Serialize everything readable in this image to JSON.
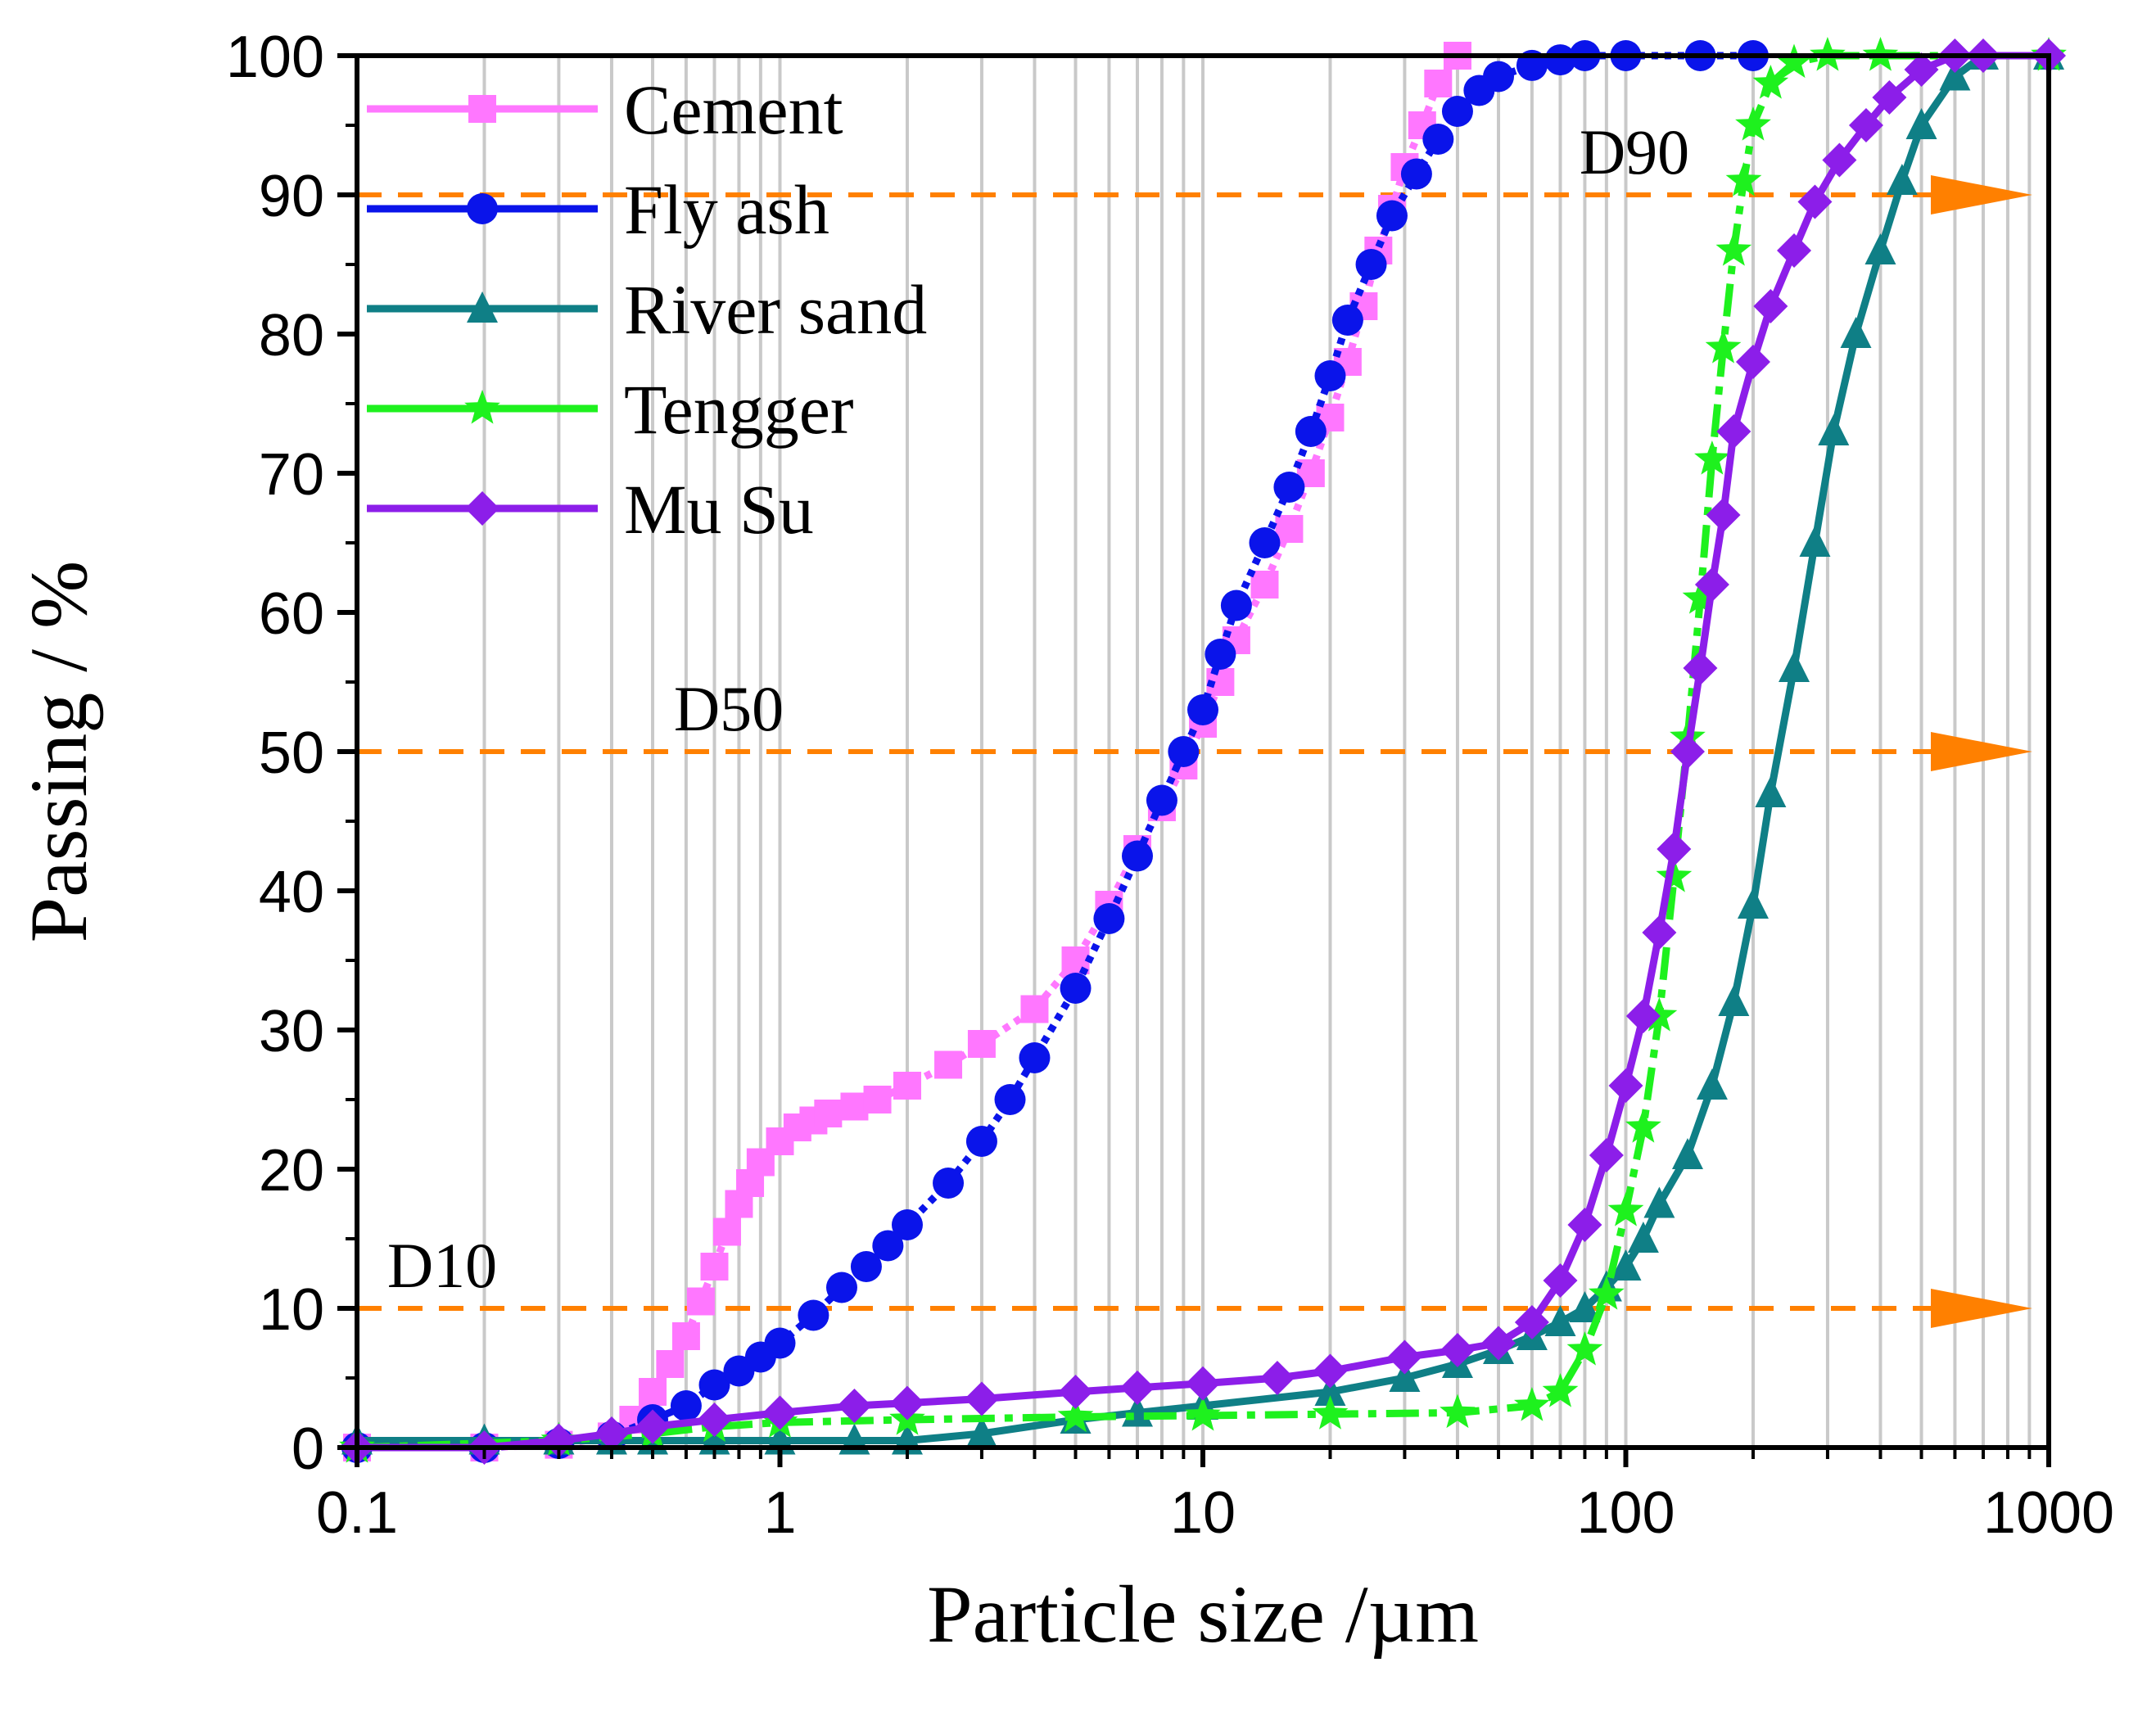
{
  "chart_data": {
    "type": "line",
    "title": "",
    "xlabel": "Particle size /µm",
    "ylabel": "Passing / %",
    "xscale": "log",
    "xlim": [
      0.1,
      1000
    ],
    "ylim": [
      0,
      100
    ],
    "x_ticks": [
      0.1,
      1,
      10,
      100,
      1000
    ],
    "x_tick_labels": [
      "0.1",
      "1",
      "10",
      "100",
      "1000"
    ],
    "y_ticks": [
      0,
      10,
      20,
      30,
      40,
      50,
      60,
      70,
      80,
      90,
      100
    ],
    "y_tick_labels": [
      "0",
      "10",
      "20",
      "30",
      "40",
      "50",
      "60",
      "70",
      "80",
      "90",
      "100"
    ],
    "grid": "vertical minor log gridlines",
    "legend_position": "top-left",
    "reference_lines": [
      {
        "label": "D10",
        "y": 10,
        "color": "#ff8000"
      },
      {
        "label": "D50",
        "y": 50,
        "color": "#ff8000"
      },
      {
        "label": "D90",
        "y": 90,
        "color": "#ff8000"
      }
    ],
    "series": [
      {
        "name": "Cement",
        "color": "#ff77ff",
        "marker": "square",
        "x": [
          0.1,
          0.2,
          0.3,
          0.4,
          0.45,
          0.5,
          0.55,
          0.6,
          0.65,
          0.7,
          0.75,
          0.8,
          0.85,
          0.9,
          1.0,
          1.1,
          1.2,
          1.3,
          1.5,
          1.7,
          2.0,
          2.5,
          3.0,
          4.0,
          5.0,
          6.0,
          7.0,
          8.0,
          9.0,
          10,
          11,
          12,
          14,
          16,
          18,
          20,
          22,
          24,
          26,
          28,
          30,
          33,
          36,
          40
        ],
        "y": [
          0,
          0,
          0.2,
          0.8,
          2,
          4,
          6,
          8,
          10.5,
          13,
          15.5,
          17.5,
          19,
          20.5,
          22,
          23,
          23.5,
          24,
          24.5,
          25,
          26,
          27.5,
          29,
          31.5,
          35,
          39,
          43,
          46,
          49,
          52,
          55,
          58,
          62,
          66,
          70,
          74,
          78,
          82,
          86,
          89,
          92,
          95,
          98,
          100
        ]
      },
      {
        "name": "Fly ash",
        "color": "#0a14ea",
        "marker": "circle",
        "x": [
          0.1,
          0.2,
          0.3,
          0.4,
          0.5,
          0.6,
          0.7,
          0.8,
          0.9,
          1.0,
          1.2,
          1.4,
          1.6,
          1.8,
          2.0,
          2.5,
          3.0,
          3.5,
          4.0,
          5.0,
          6.0,
          7.0,
          8.0,
          9.0,
          10,
          11,
          12,
          14,
          16,
          18,
          20,
          22,
          25,
          28,
          32,
          36,
          40,
          45,
          50,
          60,
          70,
          80,
          100,
          150,
          200
        ],
        "y": [
          0,
          0,
          0.3,
          0.8,
          2,
          3,
          4.5,
          5.5,
          6.5,
          7.5,
          9.5,
          11.5,
          13,
          14.5,
          16,
          19,
          22,
          25,
          28,
          33,
          38,
          42.5,
          46.5,
          50,
          53,
          57,
          60.5,
          65,
          69,
          73,
          77,
          81,
          85,
          88.5,
          91.5,
          94,
          96,
          97.5,
          98.5,
          99.3,
          99.7,
          100,
          100,
          100,
          100
        ]
      },
      {
        "name": "River sand",
        "color": "#0f7f86",
        "marker": "triangle",
        "x": [
          0.1,
          0.2,
          0.3,
          0.4,
          0.5,
          0.7,
          1.0,
          1.5,
          2.0,
          3.0,
          5.0,
          7.0,
          10,
          20,
          30,
          40,
          50,
          60,
          70,
          80,
          90,
          100,
          110,
          120,
          140,
          160,
          180,
          200,
          220,
          250,
          280,
          310,
          350,
          400,
          450,
          500,
          600,
          700,
          1000
        ],
        "y": [
          0.5,
          0.5,
          0.5,
          0.5,
          0.5,
          0.5,
          0.5,
          0.5,
          0.5,
          1,
          2,
          2.5,
          3,
          4,
          5,
          6,
          7,
          8,
          9,
          10,
          11.5,
          13,
          15,
          17.5,
          21,
          26,
          32,
          39,
          47,
          56,
          65,
          73,
          80,
          86,
          91,
          95,
          98.5,
          100,
          100
        ]
      },
      {
        "name": "Tengger",
        "color": "#1ef11e",
        "marker": "star",
        "x": [
          0.1,
          0.3,
          0.5,
          0.7,
          1.0,
          2.0,
          5.0,
          10,
          20,
          40,
          60,
          70,
          80,
          90,
          100,
          110,
          120,
          130,
          140,
          150,
          160,
          170,
          180,
          190,
          200,
          220,
          250,
          300,
          400,
          1000
        ],
        "y": [
          0,
          0.5,
          1,
          1.5,
          1.8,
          2,
          2.2,
          2.3,
          2.4,
          2.5,
          3,
          4,
          7,
          11,
          17,
          23,
          31,
          41,
          51,
          61,
          71,
          79,
          86,
          91,
          95,
          98,
          99.5,
          100,
          100,
          100
        ]
      },
      {
        "name": "Mu Su",
        "color": "#8c1ee9",
        "marker": "diamond",
        "x": [
          0.1,
          0.2,
          0.3,
          0.4,
          0.5,
          0.7,
          1.0,
          1.5,
          2.0,
          3.0,
          5.0,
          7.0,
          10,
          15,
          20,
          30,
          40,
          50,
          60,
          70,
          80,
          90,
          100,
          110,
          120,
          130,
          140,
          150,
          160,
          170,
          180,
          200,
          220,
          250,
          280,
          320,
          370,
          420,
          500,
          600,
          700,
          1000
        ],
        "y": [
          0,
          0,
          0.5,
          1,
          1.5,
          2,
          2.5,
          3,
          3.2,
          3.5,
          4,
          4.3,
          4.6,
          5,
          5.5,
          6.5,
          7,
          7.5,
          9,
          12,
          16,
          21,
          26,
          31,
          37,
          43,
          50,
          56,
          62,
          67,
          73,
          78,
          82,
          86,
          89.5,
          92.5,
          95,
          97,
          99,
          100,
          100,
          100
        ]
      }
    ]
  }
}
